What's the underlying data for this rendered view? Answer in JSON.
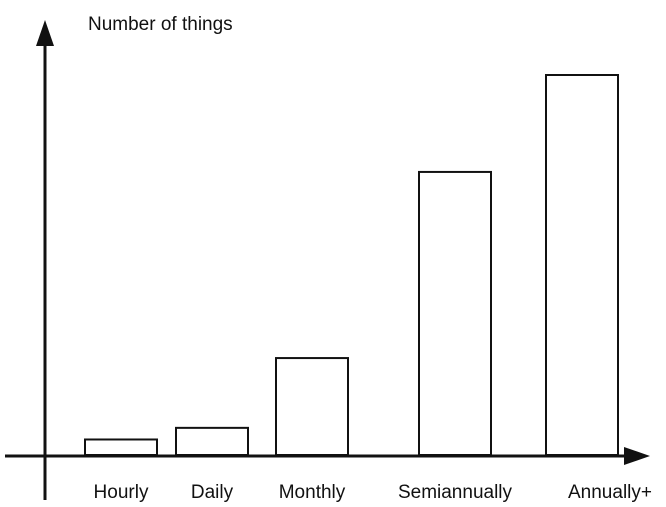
{
  "chart_data": {
    "type": "bar",
    "title": "",
    "xlabel": "",
    "ylabel": "Number of things",
    "categories": [
      "Hourly",
      "Daily",
      "Monthly",
      "Semiannually",
      "Annually+"
    ],
    "values": [
      4,
      7,
      25,
      73,
      98
    ],
    "ylim": [
      0,
      100
    ],
    "grid": false,
    "legend": "none",
    "colors": {
      "bar_fill": "#ffffff",
      "bar_stroke": "#111111",
      "axis": "#111111",
      "text": "#111111"
    }
  }
}
